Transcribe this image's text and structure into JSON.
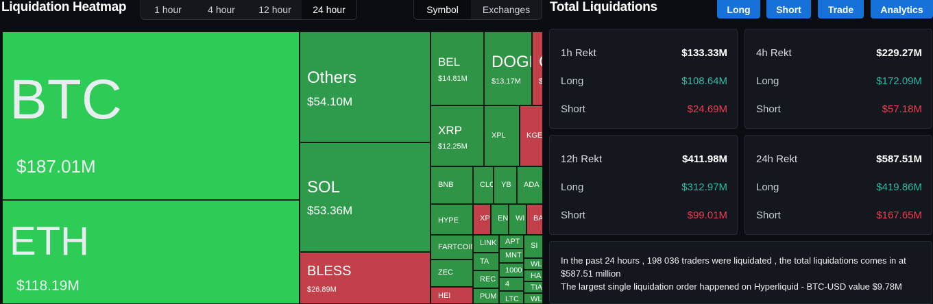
{
  "header": {
    "title": "Liquidation Heatmap",
    "time_options": [
      "1 hour",
      "4 hour",
      "12 hour",
      "24 hour"
    ],
    "time_selected": "24 hour",
    "group_options": [
      "Symbol",
      "Exchanges"
    ],
    "group_selected": "Symbol"
  },
  "right_header": {
    "title": "Total Liquidations",
    "tabs": [
      "Long",
      "Short",
      "Trade",
      "Analytics"
    ]
  },
  "treemap": {
    "tiles": [
      {
        "symbol": "BTC",
        "value": "$187.01M"
      },
      {
        "symbol": "ETH",
        "value": "$118.19M"
      },
      {
        "symbol": "Others",
        "value": "$54.10M"
      },
      {
        "symbol": "SOL",
        "value": "$53.36M"
      },
      {
        "symbol": "BLESS",
        "value": "$26.89M"
      },
      {
        "symbol": "BEL",
        "value": "$14.81M"
      },
      {
        "symbol": "DOGE",
        "value": "$13.17M"
      },
      {
        "symbol": "XRP",
        "value": "$12.25M"
      },
      {
        "symbol": "XPL",
        "value": ""
      },
      {
        "symbol": "KGEN",
        "value": ""
      },
      {
        "symbol": "BNB",
        "value": ""
      },
      {
        "symbol": "CLO",
        "value": ""
      },
      {
        "symbol": "YB",
        "value": ""
      },
      {
        "symbol": "ADA",
        "value": ""
      },
      {
        "symbol": "HYPE",
        "value": ""
      },
      {
        "symbol": "XPI",
        "value": ""
      },
      {
        "symbol": "EN",
        "value": ""
      },
      {
        "symbol": "WI",
        "value": ""
      },
      {
        "symbol": "BA",
        "value": ""
      },
      {
        "symbol": "FARTCOIN",
        "value": ""
      },
      {
        "symbol": "LINK",
        "value": ""
      },
      {
        "symbol": "APT",
        "value": ""
      },
      {
        "symbol": "SI",
        "value": ""
      },
      {
        "symbol": "ZEC",
        "value": ""
      },
      {
        "symbol": "TA",
        "value": ""
      },
      {
        "symbol": "MNT",
        "value": ""
      },
      {
        "symbol": "WL",
        "value": ""
      },
      {
        "symbol": "1000",
        "value": ""
      },
      {
        "symbol": "HA",
        "value": ""
      },
      {
        "symbol": "REC",
        "value": ""
      },
      {
        "symbol": "4",
        "value": ""
      },
      {
        "symbol": "TIA",
        "value": ""
      },
      {
        "symbol": "HEI",
        "value": ""
      },
      {
        "symbol": "PUM",
        "value": ""
      },
      {
        "symbol": "LTC",
        "value": ""
      },
      {
        "symbol": "WL",
        "value": ""
      },
      {
        "symbol": "C",
        "value": "$"
      }
    ]
  },
  "stats": [
    {
      "label": "1h Rekt",
      "total": "$133.33M",
      "long_label": "Long",
      "long": "$108.64M",
      "short_label": "Short",
      "short": "$24.69M"
    },
    {
      "label": "4h Rekt",
      "total": "$229.27M",
      "long_label": "Long",
      "long": "$172.09M",
      "short_label": "Short",
      "short": "$57.18M"
    },
    {
      "label": "12h Rekt",
      "total": "$411.98M",
      "long_label": "Long",
      "long": "$312.97M",
      "short_label": "Short",
      "short": "$99.01M"
    },
    {
      "label": "24h Rekt",
      "total": "$587.51M",
      "long_label": "Long",
      "long": "$419.86M",
      "short_label": "Short",
      "short": "$167.65M"
    }
  ],
  "summary": {
    "line1": "In the past 24 hours , 198 036 traders were liquidated , the total liquidations comes in at $587.51 million",
    "line2": "The largest single liquidation order happened on Hyperliquid - BTC-USD value $9.78M"
  },
  "colors": {
    "bright_green": "#2ecc57",
    "green": "#2d9b4b",
    "red": "#c1404a",
    "long_text": "#2fb9a0",
    "short_text": "#ef3b50",
    "tab_blue": "#1672d8"
  }
}
